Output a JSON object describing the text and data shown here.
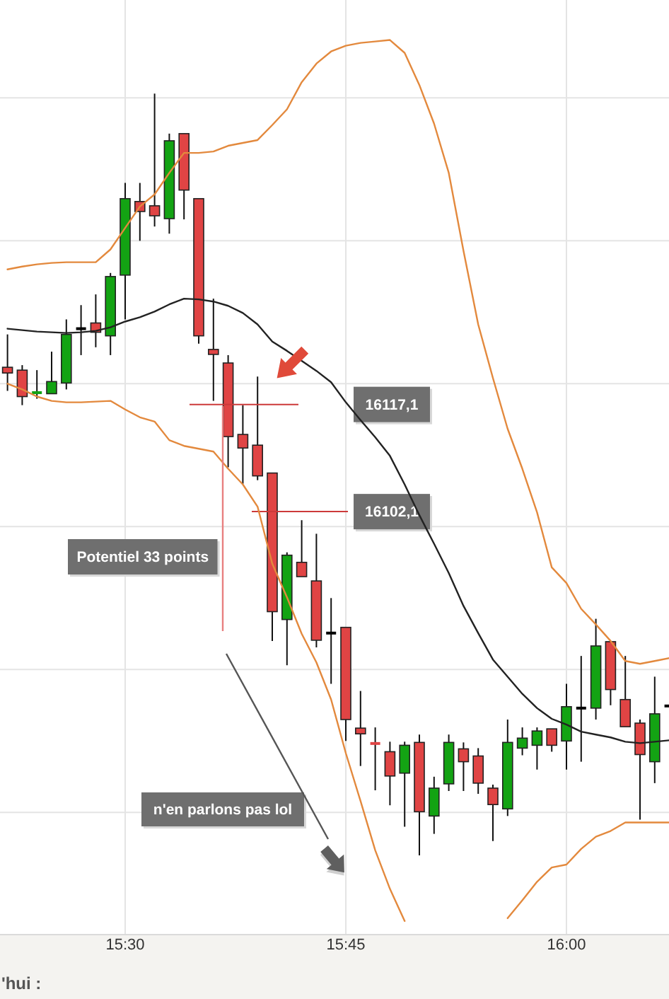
{
  "chart_data": {
    "type": "candlestick",
    "categories": [
      null,
      null,
      null,
      null,
      null,
      null,
      null,
      null,
      "15:30",
      null,
      null,
      null,
      null,
      null,
      null,
      null,
      null,
      null,
      null,
      null,
      null,
      null,
      null,
      "15:45",
      null,
      null,
      null,
      null,
      null,
      null,
      null,
      null,
      null,
      null,
      null,
      null,
      null,
      null,
      "16:00",
      null,
      null,
      null,
      null,
      null,
      null,
      null
    ],
    "ohlc": [
      [
        16122.3,
        16126.9,
        16119.0,
        16121.5
      ],
      [
        16121.9,
        16122.6,
        16117.0,
        16118.2
      ],
      [
        16118.6,
        16121.9,
        16117.9,
        16118.9
      ],
      [
        16118.6,
        16124.5,
        16118.6,
        16120.3
      ],
      [
        16120.1,
        16129.0,
        16119.2,
        16126.9
      ],
      [
        16127.7,
        16131.0,
        16124.0,
        16127.7
      ],
      [
        16128.5,
        16132.5,
        16125.1,
        16127.2
      ],
      [
        16126.7,
        16135.5,
        16124.0,
        16135.0
      ],
      [
        16135.2,
        16148.1,
        16129.0,
        16145.9
      ],
      [
        16145.5,
        16148.1,
        16140.0,
        16144.1
      ],
      [
        16144.9,
        16160.6,
        16142.0,
        16143.5
      ],
      [
        16143.1,
        16155.0,
        16141.0,
        16154.0
      ],
      [
        16155.0,
        16155.0,
        16143.0,
        16147.1
      ],
      [
        16145.9,
        16145.9,
        16125.6,
        16126.7
      ],
      [
        16124.8,
        16131.9,
        16117.6,
        16124.1
      ],
      [
        16122.9,
        16124.0,
        16108.3,
        16112.6
      ],
      [
        16112.9,
        16117.0,
        16106.0,
        16111.0
      ],
      [
        16111.4,
        16121.0,
        16106.5,
        16107.1
      ],
      [
        16107.5,
        16107.5,
        16084.0,
        16088.1
      ],
      [
        16087.0,
        16096.4,
        16080.6,
        16096.0
      ],
      [
        16095.0,
        16100.9,
        16093.0,
        16093.0
      ],
      [
        16092.4,
        16099.0,
        16083.1,
        16084.1
      ],
      [
        16085.1,
        16090.0,
        16078.0,
        16085.1
      ],
      [
        16085.9,
        16085.9,
        16070.0,
        16073.0
      ],
      [
        16071.8,
        16077.0,
        16066.5,
        16071.0
      ],
      [
        16069.8,
        16071.9,
        16063.1,
        16069.5
      ],
      [
        16068.5,
        16069.9,
        16061.0,
        16065.1
      ],
      [
        16065.5,
        16069.9,
        16058.0,
        16069.4
      ],
      [
        16069.8,
        16070.9,
        16054.0,
        16060.1
      ],
      [
        16059.5,
        16065.0,
        16057.0,
        16063.4
      ],
      [
        16064.0,
        16070.9,
        16063.0,
        16069.8
      ],
      [
        16068.9,
        16069.8,
        16063.0,
        16067.1
      ],
      [
        16067.9,
        16069.0,
        16062.6,
        16064.1
      ],
      [
        16063.4,
        16063.9,
        16056.0,
        16061.1
      ],
      [
        16060.5,
        16073.0,
        16059.5,
        16069.8
      ],
      [
        16069.0,
        16071.9,
        16068.0,
        16070.4
      ],
      [
        16069.4,
        16071.9,
        16066.0,
        16071.4
      ],
      [
        16071.7,
        16071.7,
        16068.5,
        16069.4
      ],
      [
        16070.0,
        16078.0,
        16066.0,
        16074.8
      ],
      [
        16074.6,
        16081.9,
        16067.1,
        16074.6
      ],
      [
        16074.6,
        16087.1,
        16073.0,
        16083.3
      ],
      [
        16083.9,
        16083.9,
        16075.0,
        16077.2
      ],
      [
        16075.8,
        16081.9,
        16072.0,
        16072.0
      ],
      [
        16072.5,
        16073.0,
        16059.0,
        16068.1
      ],
      [
        16067.1,
        16079.0,
        16064.1,
        16073.8
      ],
      [
        16074.9,
        16074.9,
        16074.9,
        16074.9
      ]
    ],
    "colors": [
      "#e04444",
      "#e04444",
      "#13a313",
      "#13a313",
      "#13a313",
      "#000000",
      "#e04444",
      "#13a313",
      "#13a313",
      "#e04444",
      "#e04444",
      "#13a313",
      "#e04444",
      "#e04444",
      "#e04444",
      "#e04444",
      "#e04444",
      "#e04444",
      "#e04444",
      "#13a313",
      "#e04444",
      "#e04444",
      "#000000",
      "#e04444",
      "#e04444",
      "#e04444",
      "#e04444",
      "#13a313",
      "#e04444",
      "#13a313",
      "#13a313",
      "#e04444",
      "#e04444",
      "#e04444",
      "#13a313",
      "#13a313",
      "#13a313",
      "#e04444",
      "#13a313",
      "#000000",
      "#13a313",
      "#e04444",
      "#e04444",
      "#e04444",
      "#13a313",
      "#000000"
    ],
    "series": [
      {
        "type": "line",
        "color": "#e3893d",
        "values": [
          16136.0,
          16136.4,
          16136.7,
          16136.9,
          16137.0,
          16137.0,
          16137.0,
          16138.8,
          16141.8,
          16144.8,
          16146.5,
          16149.5,
          16152.3,
          16152.3,
          16152.5,
          16153.3,
          16153.7,
          16154.1,
          16156.2,
          16158.4,
          16162.2,
          16164.8,
          16166.5,
          16167.3,
          16167.7,
          16167.9,
          16168.1,
          16166.3,
          16161.8,
          16156.4,
          16149.5,
          16138.6,
          16128.3,
          16120.8,
          16113.7,
          16108.1,
          16102.0,
          16094.3,
          16092.1,
          16088.5,
          16086.3,
          16084.0,
          16081.2,
          16080.8,
          16081.2,
          16081.6
        ]
      },
      {
        "type": "line",
        "color": "#222222",
        "values": [
          16127.7,
          16127.5,
          16127.3,
          16127.2,
          16127.1,
          16127.2,
          16127.4,
          16127.9,
          16128.7,
          16129.3,
          16130.1,
          16131.1,
          16131.9,
          16131.8,
          16131.5,
          16130.9,
          16129.9,
          16128.3,
          16125.9,
          16124.6,
          16123.2,
          16121.8,
          16120.2,
          16117.4,
          16114.9,
          16112.5,
          16109.9,
          16105.9,
          16101.6,
          16097.6,
          16093.5,
          16088.9,
          16085.1,
          16081.4,
          16079.0,
          16076.6,
          16074.6,
          16073.1,
          16072.3,
          16071.3,
          16070.9,
          16070.5,
          16069.9,
          16069.7,
          16069.9,
          16070.1
        ]
      },
      {
        "type": "line",
        "color": "#e3893d",
        "values": [
          16120.0,
          16119.2,
          16118.2,
          16117.6,
          16117.4,
          16117.4,
          16117.5,
          16117.6,
          16116.4,
          16115.3,
          16114.7,
          16112.1,
          16111.3,
          16110.9,
          16110.5,
          16108.1,
          16105.9,
          16102.8,
          16094.8,
          16090.1,
          16085.0,
          16081.0,
          16075.8,
          16068.3,
          16061.6,
          16054.7,
          16049.3,
          16044.8,
          null,
          null,
          null,
          null,
          null,
          null,
          16045.2,
          16047.7,
          16050.3,
          16052.3,
          16052.7,
          16054.9,
          16056.6,
          16057.4,
          16058.6,
          16058.6,
          16058.6,
          16058.6
        ]
      }
    ],
    "ylim": [
      16043,
      16173.7
    ],
    "yticks": [
      {
        "value": 16060,
        "label": null
      },
      {
        "value": 16080,
        "label": null
      },
      {
        "value": 16100,
        "label": null
      },
      {
        "value": 16102.1,
        "label": "16102,1"
      },
      {
        "value": 16117.1,
        "label": "16117,1"
      },
      {
        "value": 16120,
        "label": null
      },
      {
        "value": 16140,
        "label": null
      },
      {
        "value": 16160,
        "label": null
      }
    ],
    "grid": true,
    "ref_lines": [
      {
        "axis": "y",
        "value": 16117.1,
        "color": "#cc3a3a"
      },
      {
        "axis": "y",
        "value": 16102.1,
        "color": "#cc3a3a"
      }
    ],
    "annotations": [
      "Potentiel 33 points",
      "n'en parlons pas lol",
      "'hui :"
    ]
  }
}
